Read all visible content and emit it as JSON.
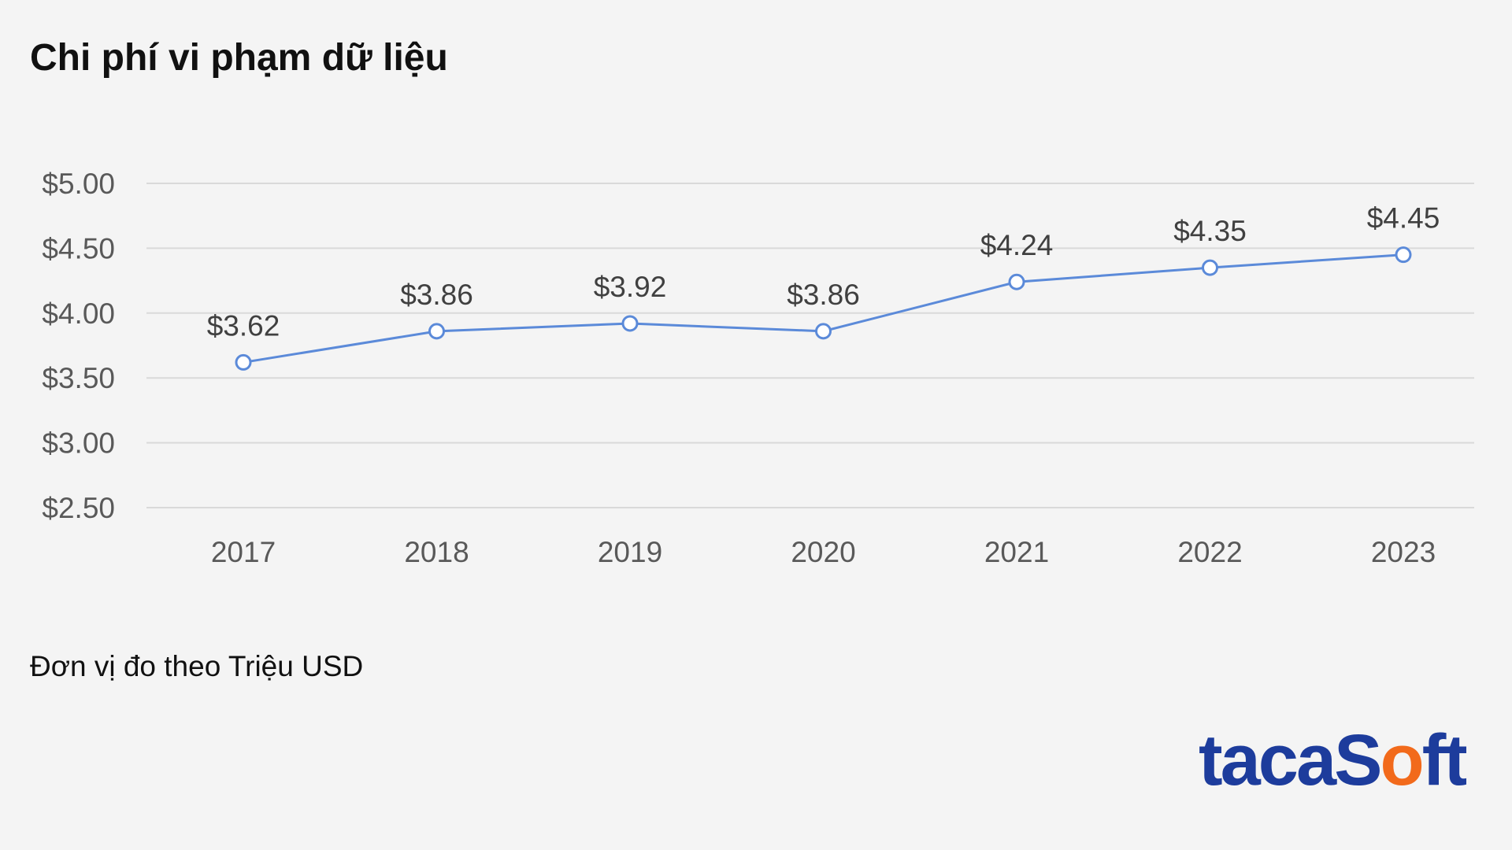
{
  "header": {
    "title": "Chi phí vi phạm dữ liệu"
  },
  "chart_data": {
    "type": "line",
    "categories": [
      "2017",
      "2018",
      "2019",
      "2020",
      "2021",
      "2022",
      "2023"
    ],
    "series": [
      {
        "values": [
          3.62,
          3.86,
          3.92,
          3.86,
          4.24,
          4.35,
          4.45
        ],
        "data_labels": [
          "$3.62",
          "$3.86",
          "$3.92",
          "$3.86",
          "$4.24",
          "$4.35",
          "$4.45"
        ],
        "color": "#5b8ad9"
      }
    ],
    "y_ticks": [
      {
        "value": 2.5,
        "label": "$2.50"
      },
      {
        "value": 3.0,
        "label": "$3.00"
      },
      {
        "value": 3.5,
        "label": "$3.50"
      },
      {
        "value": 4.0,
        "label": "$4.00"
      },
      {
        "value": 4.5,
        "label": "$4.50"
      },
      {
        "value": 5.0,
        "label": "$5.00"
      }
    ],
    "ylim": [
      2.5,
      5.0
    ],
    "grid": true,
    "legend": "none",
    "gridline_color": "#d9d9d9",
    "tick_label_color": "#595959",
    "data_label_color": "#404040"
  },
  "footer": {
    "unit_note": "Đơn vị đo theo Triệu USD"
  },
  "brand": {
    "logo_text_part1": "taca",
    "logo_text_part2": "S",
    "logo_text_part3": "ft",
    "logo_color": "#1d3c9c",
    "logo_accent": "#f26a1b"
  }
}
